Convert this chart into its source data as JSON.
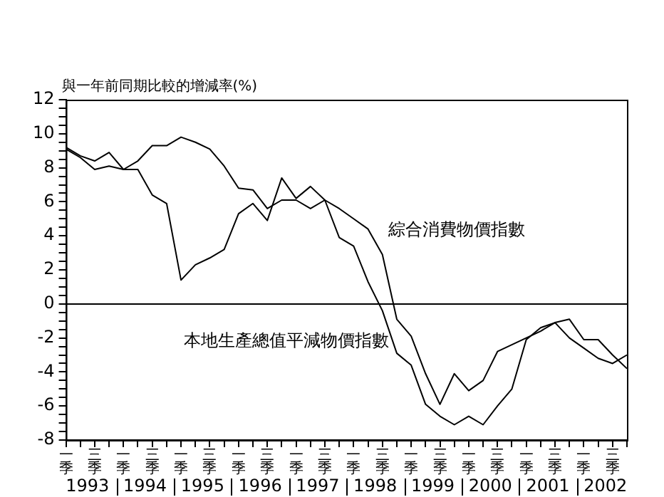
{
  "chart_data": {
    "type": "line",
    "ylabel": "與一年前同期比較的增減率(%)",
    "categories": [
      "一季",
      null,
      "三季",
      null,
      "一季",
      null,
      "三季",
      null,
      "一季",
      null,
      "三季",
      null,
      "一季",
      null,
      "三季",
      null,
      "一季",
      null,
      "三季",
      null,
      "一季",
      null,
      "三季",
      null,
      "一季",
      null,
      "三季",
      null,
      "一季",
      null,
      "三季",
      null,
      "一季",
      null,
      "三季",
      null,
      "一季",
      null,
      "三季",
      null
    ],
    "series": [
      {
        "name": "綜合消費物價指數",
        "color": "#000000",
        "values": [
          9.2,
          8.7,
          8.4,
          8.9,
          7.9,
          8.4,
          9.3,
          9.3,
          9.8,
          9.5,
          9.1,
          8.1,
          6.8,
          6.7,
          5.6,
          6.1,
          6.1,
          5.6,
          6.1,
          5.6,
          5.0,
          4.4,
          2.9,
          -0.9,
          -1.9,
          -4.1,
          -5.9,
          -4.1,
          -5.1,
          -4.5,
          -2.8,
          -2.4,
          -2.0,
          -1.6,
          -1.1,
          -2.0,
          -2.6,
          -3.2,
          -3.5,
          -3.0
        ]
      },
      {
        "name": "本地生產總值平減物價指數",
        "color": "#000000",
        "values": [
          9.1,
          8.6,
          7.9,
          8.1,
          7.9,
          7.9,
          6.4,
          5.9,
          1.4,
          2.3,
          2.7,
          3.2,
          5.3,
          5.9,
          4.9,
          7.4,
          6.2,
          6.9,
          6.1,
          3.9,
          3.4,
          1.3,
          -0.4,
          -2.9,
          -3.6,
          -5.9,
          -6.6,
          -7.1,
          -6.6,
          -7.1,
          -6.0,
          -5.0,
          -2.1,
          -1.4,
          -1.1,
          -0.9,
          -2.1,
          -2.1,
          -3.0,
          -3.8
        ]
      }
    ],
    "ylim": [
      -8,
      12
    ],
    "yticks": [
      -8,
      {
        "value": -7.5,
        "label": null
      },
      {
        "value": -7,
        "label": null
      },
      {
        "value": -6.5,
        "label": null
      },
      -6,
      {
        "value": -5.5,
        "label": null
      },
      {
        "value": -5,
        "label": null
      },
      {
        "value": -4.5,
        "label": null
      },
      -4,
      {
        "value": -3.5,
        "label": null
      },
      {
        "value": -3,
        "label": null
      },
      {
        "value": -2.5,
        "label": null
      },
      -2,
      {
        "value": -1.5,
        "label": null
      },
      {
        "value": -1,
        "label": null
      },
      {
        "value": -0.5,
        "label": null
      },
      0,
      {
        "value": 0.5,
        "label": null
      },
      {
        "value": 1,
        "label": null
      },
      {
        "value": 1.5,
        "label": null
      },
      2,
      {
        "value": 2.5,
        "label": null
      },
      {
        "value": 3,
        "label": null
      },
      {
        "value": 3.5,
        "label": null
      },
      4,
      {
        "value": 4.5,
        "label": null
      },
      {
        "value": 5,
        "label": null
      },
      {
        "value": 5.5,
        "label": null
      },
      6,
      {
        "value": 6.5,
        "label": null
      },
      {
        "value": 7,
        "label": null
      },
      {
        "value": 7.5,
        "label": null
      },
      8,
      {
        "value": 8.5,
        "label": null
      },
      {
        "value": 9,
        "label": null
      },
      {
        "value": 9.5,
        "label": null
      },
      10,
      {
        "value": 10.5,
        "label": null
      },
      {
        "value": 11,
        "label": null
      },
      {
        "value": 11.5,
        "label": null
      },
      12
    ],
    "ref_lines": [
      {
        "axis": "y",
        "value": 0
      }
    ],
    "annotations": [
      "1993",
      "1994",
      "1995",
      "1996",
      "1997",
      "1998",
      "1999",
      "2000",
      "2001",
      "2002"
    ],
    "grid": false,
    "legend": false,
    "marker": "none",
    "line_style": "solid"
  }
}
